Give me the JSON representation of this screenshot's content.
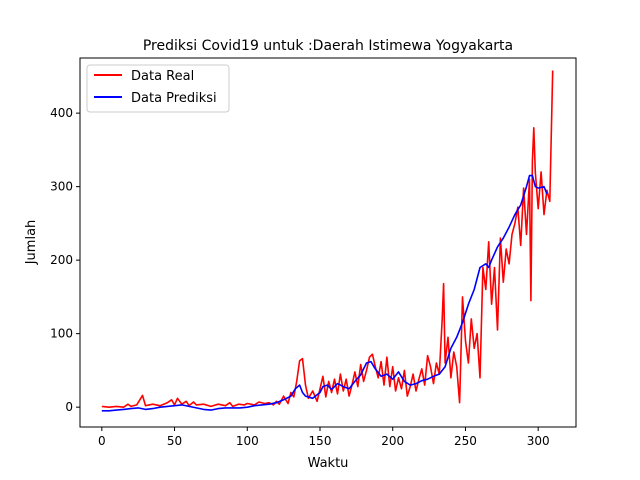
{
  "chart_data": {
    "type": "line",
    "title": "Prediksi Covid19 untuk :Daerah Istimewa Yogyakarta",
    "xlabel": "Waktu",
    "ylabel": "Jumlah",
    "xlim": [
      -15,
      326
    ],
    "ylim": [
      -27,
      475
    ],
    "xticks": [
      0,
      50,
      100,
      150,
      200,
      250,
      300
    ],
    "yticks": [
      0,
      100,
      200,
      300,
      400
    ],
    "grid": false,
    "legend_position": "top-left",
    "series": [
      {
        "name": "Data Real",
        "color": "#ff0000",
        "points": [
          [
            0,
            1
          ],
          [
            5,
            0
          ],
          [
            10,
            1
          ],
          [
            15,
            0
          ],
          [
            18,
            4
          ],
          [
            20,
            1
          ],
          [
            24,
            3
          ],
          [
            28,
            16
          ],
          [
            30,
            2
          ],
          [
            35,
            4
          ],
          [
            40,
            2
          ],
          [
            45,
            6
          ],
          [
            48,
            10
          ],
          [
            50,
            3
          ],
          [
            52,
            12
          ],
          [
            55,
            4
          ],
          [
            58,
            8
          ],
          [
            60,
            2
          ],
          [
            63,
            7
          ],
          [
            65,
            3
          ],
          [
            70,
            4
          ],
          [
            75,
            1
          ],
          [
            80,
            4
          ],
          [
            85,
            2
          ],
          [
            88,
            6
          ],
          [
            90,
            1
          ],
          [
            94,
            4
          ],
          [
            98,
            3
          ],
          [
            100,
            5
          ],
          [
            105,
            3
          ],
          [
            108,
            7
          ],
          [
            112,
            5
          ],
          [
            115,
            6
          ],
          [
            118,
            3
          ],
          [
            120,
            8
          ],
          [
            122,
            4
          ],
          [
            125,
            15
          ],
          [
            128,
            5
          ],
          [
            130,
            20
          ],
          [
            132,
            14
          ],
          [
            134,
            35
          ],
          [
            136,
            63
          ],
          [
            138,
            66
          ],
          [
            140,
            30
          ],
          [
            142,
            12
          ],
          [
            145,
            22
          ],
          [
            148,
            8
          ],
          [
            150,
            25
          ],
          [
            152,
            42
          ],
          [
            154,
            14
          ],
          [
            156,
            35
          ],
          [
            158,
            20
          ],
          [
            160,
            38
          ],
          [
            162,
            18
          ],
          [
            164,
            45
          ],
          [
            166,
            22
          ],
          [
            168,
            38
          ],
          [
            170,
            15
          ],
          [
            172,
            30
          ],
          [
            174,
            48
          ],
          [
            176,
            28
          ],
          [
            178,
            58
          ],
          [
            180,
            35
          ],
          [
            182,
            50
          ],
          [
            184,
            68
          ],
          [
            186,
            72
          ],
          [
            188,
            55
          ],
          [
            190,
            40
          ],
          [
            192,
            62
          ],
          [
            194,
            30
          ],
          [
            196,
            68
          ],
          [
            198,
            28
          ],
          [
            200,
            55
          ],
          [
            202,
            22
          ],
          [
            204,
            40
          ],
          [
            206,
            25
          ],
          [
            208,
            50
          ],
          [
            210,
            15
          ],
          [
            212,
            28
          ],
          [
            214,
            45
          ],
          [
            216,
            22
          ],
          [
            218,
            38
          ],
          [
            220,
            52
          ],
          [
            222,
            30
          ],
          [
            224,
            70
          ],
          [
            226,
            55
          ],
          [
            228,
            32
          ],
          [
            230,
            60
          ],
          [
            232,
            45
          ],
          [
            234,
            120
          ],
          [
            235,
            168
          ],
          [
            236,
            60
          ],
          [
            238,
            95
          ],
          [
            240,
            40
          ],
          [
            242,
            75
          ],
          [
            244,
            55
          ],
          [
            246,
            6
          ],
          [
            248,
            150
          ],
          [
            250,
            90
          ],
          [
            252,
            60
          ],
          [
            254,
            120
          ],
          [
            256,
            80
          ],
          [
            258,
            100
          ],
          [
            260,
            40
          ],
          [
            262,
            190
          ],
          [
            264,
            160
          ],
          [
            266,
            225
          ],
          [
            268,
            140
          ],
          [
            270,
            190
          ],
          [
            272,
            105
          ],
          [
            274,
            230
          ],
          [
            276,
            170
          ],
          [
            278,
            215
          ],
          [
            280,
            195
          ],
          [
            282,
            235
          ],
          [
            284,
            250
          ],
          [
            286,
            272
          ],
          [
            288,
            220
          ],
          [
            290,
            298
          ],
          [
            292,
            235
          ],
          [
            294,
            310
          ],
          [
            295,
            145
          ],
          [
            296,
            335
          ],
          [
            297,
            380
          ],
          [
            298,
            320
          ],
          [
            300,
            270
          ],
          [
            302,
            320
          ],
          [
            304,
            262
          ],
          [
            306,
            295
          ],
          [
            308,
            280
          ],
          [
            310,
            458
          ]
        ]
      },
      {
        "name": "Data Prediksi",
        "color": "#0000ff",
        "points": [
          [
            0,
            -5
          ],
          [
            5,
            -5
          ],
          [
            10,
            -4
          ],
          [
            15,
            -3
          ],
          [
            20,
            -2
          ],
          [
            25,
            -1
          ],
          [
            30,
            -3
          ],
          [
            35,
            -2
          ],
          [
            40,
            0
          ],
          [
            45,
            1
          ],
          [
            50,
            2
          ],
          [
            55,
            3
          ],
          [
            60,
            1
          ],
          [
            65,
            -1
          ],
          [
            70,
            -3
          ],
          [
            75,
            -4
          ],
          [
            80,
            -2
          ],
          [
            85,
            -1
          ],
          [
            90,
            -1
          ],
          [
            95,
            -1
          ],
          [
            100,
            0
          ],
          [
            105,
            2
          ],
          [
            110,
            3
          ],
          [
            115,
            4
          ],
          [
            120,
            6
          ],
          [
            125,
            10
          ],
          [
            130,
            15
          ],
          [
            133,
            25
          ],
          [
            136,
            30
          ],
          [
            138,
            20
          ],
          [
            140,
            15
          ],
          [
            145,
            12
          ],
          [
            150,
            20
          ],
          [
            152,
            28
          ],
          [
            155,
            30
          ],
          [
            158,
            24
          ],
          [
            162,
            32
          ],
          [
            166,
            28
          ],
          [
            170,
            25
          ],
          [
            174,
            35
          ],
          [
            178,
            44
          ],
          [
            182,
            60
          ],
          [
            185,
            62
          ],
          [
            188,
            52
          ],
          [
            192,
            42
          ],
          [
            196,
            45
          ],
          [
            200,
            38
          ],
          [
            204,
            48
          ],
          [
            208,
            35
          ],
          [
            212,
            30
          ],
          [
            216,
            32
          ],
          [
            220,
            36
          ],
          [
            224,
            38
          ],
          [
            228,
            42
          ],
          [
            232,
            45
          ],
          [
            236,
            55
          ],
          [
            240,
            80
          ],
          [
            244,
            95
          ],
          [
            248,
            115
          ],
          [
            252,
            140
          ],
          [
            256,
            160
          ],
          [
            260,
            190
          ],
          [
            264,
            195
          ],
          [
            266,
            190
          ],
          [
            268,
            200
          ],
          [
            272,
            218
          ],
          [
            276,
            230
          ],
          [
            280,
            245
          ],
          [
            284,
            262
          ],
          [
            288,
            275
          ],
          [
            292,
            300
          ],
          [
            294,
            315
          ],
          [
            296,
            315
          ],
          [
            298,
            300
          ],
          [
            300,
            298
          ],
          [
            304,
            300
          ],
          [
            306,
            290
          ]
        ]
      }
    ]
  }
}
